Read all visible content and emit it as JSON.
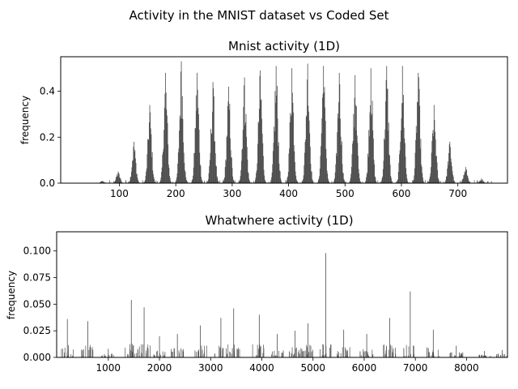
{
  "figure": {
    "suptitle": "Activity in the MNIST dataset vs Coded Set"
  },
  "chart_data": [
    {
      "type": "bar",
      "title": "Mnist activity (1D)",
      "xlabel": "",
      "ylabel": "frequency",
      "xlim": [
        -4,
        788
      ],
      "ylim": [
        0,
        0.55
      ],
      "xticks": [
        100,
        200,
        300,
        400,
        500,
        600,
        700
      ],
      "yticks": [
        0.0,
        0.2,
        0.4
      ],
      "ytick_labels": [
        "0.0",
        "0.2",
        "0.4"
      ],
      "bar_color": "#4d4d4d",
      "grid": false,
      "groups": [
        {
          "center": 70,
          "peak": 0.01
        },
        {
          "center": 98,
          "peak": 0.05
        },
        {
          "center": 126,
          "peak": 0.18
        },
        {
          "center": 154,
          "peak": 0.34
        },
        {
          "center": 182,
          "peak": 0.48
        },
        {
          "center": 210,
          "peak": 0.53
        },
        {
          "center": 238,
          "peak": 0.48
        },
        {
          "center": 266,
          "peak": 0.44
        },
        {
          "center": 294,
          "peak": 0.42
        },
        {
          "center": 322,
          "peak": 0.46
        },
        {
          "center": 350,
          "peak": 0.49
        },
        {
          "center": 378,
          "peak": 0.51
        },
        {
          "center": 406,
          "peak": 0.5
        },
        {
          "center": 434,
          "peak": 0.52
        },
        {
          "center": 462,
          "peak": 0.51
        },
        {
          "center": 490,
          "peak": 0.48
        },
        {
          "center": 518,
          "peak": 0.47
        },
        {
          "center": 546,
          "peak": 0.5
        },
        {
          "center": 574,
          "peak": 0.51
        },
        {
          "center": 602,
          "peak": 0.51
        },
        {
          "center": 630,
          "peak": 0.48
        },
        {
          "center": 658,
          "peak": 0.34
        },
        {
          "center": 686,
          "peak": 0.18
        },
        {
          "center": 714,
          "peak": 0.07
        },
        {
          "center": 742,
          "peak": 0.02
        }
      ]
    },
    {
      "type": "bar",
      "title": "Whatwhere activity (1D)",
      "xlabel": "",
      "ylabel": "frequency",
      "xlim": [
        -9,
        8800
      ],
      "ylim": [
        0,
        0.118
      ],
      "xticks": [
        1000,
        2000,
        3000,
        4000,
        5000,
        6000,
        7000,
        8000
      ],
      "yticks": [
        0.0,
        0.025,
        0.05,
        0.075,
        0.1
      ],
      "ytick_labels": [
        "0.000",
        "0.025",
        "0.050",
        "0.075",
        "0.100"
      ],
      "bar_color": "#4d4d4d",
      "grid": false,
      "clusters": [
        {
          "center": 200,
          "peak": 0.036
        },
        {
          "center": 600,
          "peak": 0.034
        },
        {
          "center": 1000,
          "peak": 0.008
        },
        {
          "center": 1450,
          "peak": 0.054
        },
        {
          "center": 1700,
          "peak": 0.047
        },
        {
          "center": 2000,
          "peak": 0.02
        },
        {
          "center": 2350,
          "peak": 0.022
        },
        {
          "center": 2800,
          "peak": 0.03
        },
        {
          "center": 3200,
          "peak": 0.037
        },
        {
          "center": 3450,
          "peak": 0.046
        },
        {
          "center": 3950,
          "peak": 0.04
        },
        {
          "center": 4300,
          "peak": 0.022
        },
        {
          "center": 4650,
          "peak": 0.025
        },
        {
          "center": 4900,
          "peak": 0.032
        },
        {
          "center": 5250,
          "peak": 0.098
        },
        {
          "center": 5600,
          "peak": 0.026
        },
        {
          "center": 6050,
          "peak": 0.022
        },
        {
          "center": 6500,
          "peak": 0.037
        },
        {
          "center": 6900,
          "peak": 0.062
        },
        {
          "center": 7350,
          "peak": 0.026
        },
        {
          "center": 7800,
          "peak": 0.011
        },
        {
          "center": 8350,
          "peak": 0.006
        },
        {
          "center": 8700,
          "peak": 0.007
        }
      ]
    }
  ]
}
